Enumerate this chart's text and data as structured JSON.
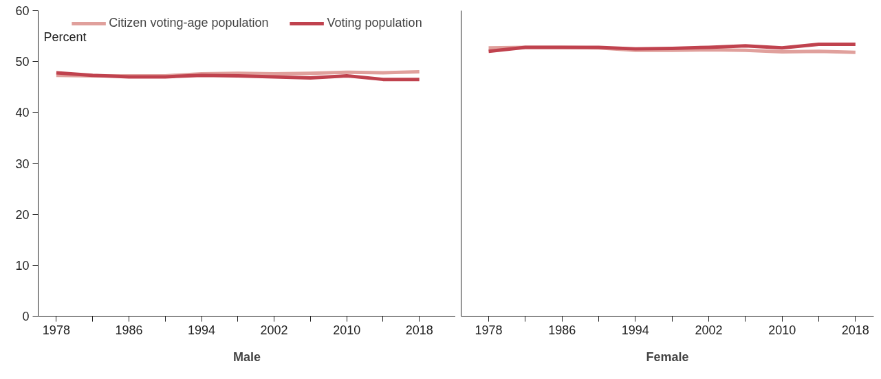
{
  "chart_data": [
    {
      "type": "line",
      "xlabel": "Male",
      "ylabel": "Percent",
      "x": [
        1978,
        1982,
        1986,
        1990,
        1994,
        1998,
        2002,
        2006,
        2010,
        2014,
        2018
      ],
      "series": [
        {
          "name": "Citizen voting-age population",
          "color": "#e0a09c",
          "values": [
            47.3,
            47.2,
            47.2,
            47.2,
            47.6,
            47.7,
            47.6,
            47.7,
            47.9,
            47.8,
            48.0
          ]
        },
        {
          "name": "Voting population",
          "color": "#c0424e",
          "values": [
            47.8,
            47.3,
            47.0,
            47.0,
            47.3,
            47.2,
            47.0,
            46.8,
            47.2,
            46.5,
            46.5
          ]
        }
      ],
      "xlim": [
        1976,
        2022
      ],
      "ylim": [
        0,
        60
      ],
      "xticks": [
        1978,
        {
          "value": 1982,
          "label": null
        },
        1986,
        {
          "value": 1990,
          "label": null
        },
        1994,
        {
          "value": 1998,
          "label": null
        },
        2002,
        {
          "value": 2006,
          "label": null
        },
        2010,
        {
          "value": 2014,
          "label": null
        },
        2018
      ],
      "yticks": [
        0,
        10,
        20,
        30,
        40,
        50,
        60
      ],
      "grid": false,
      "legend": "top"
    },
    {
      "type": "line",
      "xlabel": "Female",
      "x": [
        1978,
        1982,
        1986,
        1990,
        1994,
        1998,
        2002,
        2006,
        2010,
        2014,
        2018
      ],
      "series": [
        {
          "color": "#e0a09c",
          "values": [
            52.7,
            52.8,
            52.8,
            52.7,
            52.2,
            52.2,
            52.3,
            52.2,
            51.9,
            52.0,
            51.8
          ]
        },
        {
          "color": "#c0424e",
          "values": [
            52.0,
            52.8,
            52.8,
            52.8,
            52.5,
            52.6,
            52.8,
            53.1,
            52.7,
            53.4,
            53.4
          ]
        }
      ],
      "xlim": [
        1975,
        2020
      ],
      "ylim": [
        0,
        60
      ],
      "xticks": [
        1978,
        {
          "value": 1982,
          "label": null
        },
        1986,
        {
          "value": 1990,
          "label": null
        },
        1994,
        {
          "value": 1998,
          "label": null
        },
        2002,
        {
          "value": 2006,
          "label": null
        },
        2010,
        {
          "value": 2014,
          "label": null
        },
        2018
      ],
      "yticks": [
        0,
        10,
        20,
        30,
        40,
        50,
        60
      ],
      "grid": false,
      "tick_labels": "x"
    }
  ]
}
